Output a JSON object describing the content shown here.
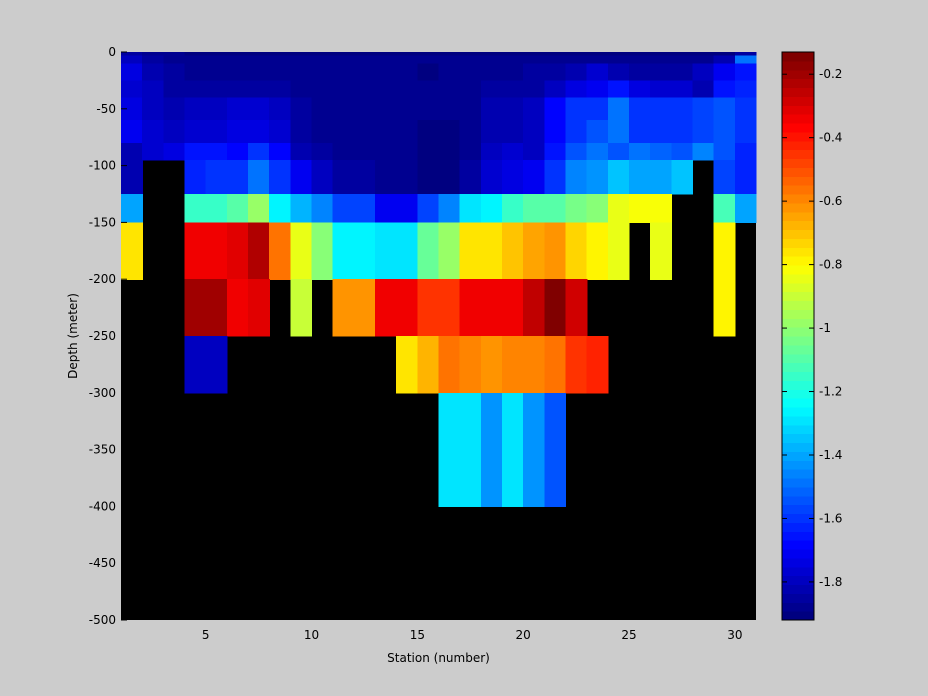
{
  "chart_data": {
    "type": "heatmap",
    "xlabel": "Station (number)",
    "ylabel": "Depth (meter)",
    "xlim": [
      1,
      31
    ],
    "ylim": [
      -500,
      0
    ],
    "x_ticks": [
      5,
      10,
      15,
      20,
      25,
      30
    ],
    "y_ticks": [
      0,
      -50,
      -100,
      -150,
      -200,
      -250,
      -300,
      -350,
      -400,
      -450,
      -500
    ],
    "colorbar": {
      "range": [
        -1.92,
        -0.13
      ],
      "ticks": [
        -0.2,
        -0.4,
        -0.6,
        -0.8,
        -1,
        -1.2,
        -1.4,
        -1.6,
        -1.8
      ],
      "colormap": "jet",
      "levels": 64
    },
    "missing_color": "#000000",
    "background_color": "#cccccc",
    "stations": [
      1,
      2,
      3,
      4,
      5,
      6,
      7,
      8,
      9,
      10,
      11,
      12,
      13,
      14,
      15,
      16,
      17,
      18,
      19,
      20,
      21,
      22,
      23,
      24,
      25,
      26,
      27,
      28,
      29,
      30
    ],
    "depth_rows": [
      {
        "depth": -3,
        "values": [
          -1.85,
          -1.88,
          -1.89,
          -1.9,
          -1.9,
          -1.9,
          -1.9,
          -1.9,
          -1.9,
          -1.9,
          -1.9,
          -1.9,
          -1.9,
          -1.9,
          -1.9,
          -1.9,
          -1.9,
          -1.9,
          -1.9,
          -1.9,
          -1.9,
          -1.9,
          -1.9,
          -1.9,
          -1.9,
          -1.9,
          -1.9,
          -1.9,
          -1.9,
          -1.85
        ]
      },
      {
        "depth": -10,
        "values": [
          -1.8,
          -1.84,
          -1.88,
          -1.89,
          -1.89,
          -1.89,
          -1.89,
          -1.89,
          -1.89,
          -1.89,
          -1.89,
          -1.89,
          -1.89,
          -1.89,
          -1.89,
          -1.89,
          -1.89,
          -1.89,
          -1.89,
          -1.89,
          -1.89,
          -1.89,
          -1.89,
          -1.89,
          -1.89,
          -1.89,
          -1.89,
          -1.89,
          -1.82,
          -1.5
        ]
      },
      {
        "depth": -25,
        "values": [
          -1.75,
          -1.82,
          -1.86,
          -1.88,
          -1.88,
          -1.88,
          -1.88,
          -1.88,
          -1.88,
          -1.88,
          -1.88,
          -1.88,
          -1.88,
          -1.88,
          -1.9,
          -1.88,
          -1.88,
          -1.88,
          -1.88,
          -1.86,
          -1.85,
          -1.82,
          -1.78,
          -1.82,
          -1.85,
          -1.86,
          -1.86,
          -1.8,
          -1.7,
          -1.65
        ]
      },
      {
        "depth": -40,
        "values": [
          -1.78,
          -1.8,
          -1.84,
          -1.86,
          -1.86,
          -1.84,
          -1.86,
          -1.86,
          -1.88,
          -1.88,
          -1.88,
          -1.88,
          -1.88,
          -1.88,
          -1.88,
          -1.88,
          -1.88,
          -1.86,
          -1.86,
          -1.85,
          -1.8,
          -1.75,
          -1.72,
          -1.65,
          -1.75,
          -1.78,
          -1.78,
          -1.82,
          -1.65,
          -1.62
        ]
      },
      {
        "depth": -60,
        "values": [
          -1.75,
          -1.8,
          -1.82,
          -1.8,
          -1.8,
          -1.78,
          -1.78,
          -1.8,
          -1.86,
          -1.88,
          -1.88,
          -1.88,
          -1.88,
          -1.88,
          -1.88,
          -1.88,
          -1.88,
          -1.82,
          -1.82,
          -1.8,
          -1.68,
          -1.6,
          -1.6,
          -1.5,
          -1.6,
          -1.6,
          -1.6,
          -1.58,
          -1.55,
          -1.6
        ]
      },
      {
        "depth": -80,
        "values": [
          -1.72,
          -1.78,
          -1.8,
          -1.78,
          -1.78,
          -1.75,
          -1.75,
          -1.78,
          -1.86,
          -1.88,
          -1.88,
          -1.88,
          -1.88,
          -1.88,
          -1.9,
          -1.9,
          -1.88,
          -1.82,
          -1.82,
          -1.8,
          -1.68,
          -1.6,
          -1.55,
          -1.5,
          -1.6,
          -1.6,
          -1.6,
          -1.58,
          -1.55,
          -1.6
        ]
      },
      {
        "depth": -95,
        "values": [
          -1.82,
          -1.76,
          -1.75,
          -1.65,
          -1.65,
          -1.68,
          -1.6,
          -1.68,
          -1.82,
          -1.85,
          -1.88,
          -1.88,
          -1.88,
          -1.88,
          -1.9,
          -1.9,
          -1.88,
          -1.8,
          -1.78,
          -1.8,
          -1.65,
          -1.55,
          -1.5,
          -1.55,
          -1.5,
          -1.52,
          -1.55,
          -1.45,
          -1.55,
          -1.62
        ]
      },
      {
        "depth": -110,
        "values": [
          -1.82,
          null,
          null,
          -1.62,
          -1.6,
          -1.6,
          -1.5,
          -1.6,
          -1.72,
          -1.8,
          -1.84,
          -1.84,
          -1.88,
          -1.88,
          -1.92,
          -1.92,
          -1.85,
          -1.78,
          -1.75,
          -1.72,
          -1.6,
          -1.45,
          -1.42,
          -1.35,
          -1.4,
          -1.4,
          -1.35,
          null,
          -1.58,
          -1.62
        ]
      },
      {
        "depth": -125,
        "values": [
          -1.82,
          null,
          null,
          -1.62,
          -1.6,
          -1.6,
          -1.5,
          -1.6,
          -1.72,
          -1.8,
          -1.84,
          -1.84,
          -1.88,
          -1.88,
          -1.92,
          -1.92,
          -1.85,
          -1.78,
          -1.75,
          -1.72,
          -1.6,
          -1.45,
          -1.42,
          -1.35,
          -1.4,
          -1.4,
          -1.35,
          null,
          -1.58,
          -1.62
        ]
      },
      {
        "depth": -150,
        "values": [
          -1.4,
          null,
          null,
          -1.15,
          -1.15,
          -1.1,
          -0.98,
          -1.25,
          -1.38,
          -1.45,
          -1.58,
          -1.58,
          -1.7,
          -1.7,
          -1.58,
          -1.45,
          -1.3,
          -1.25,
          -1.15,
          -1.1,
          -1.1,
          -1.05,
          -1.02,
          -0.85,
          -0.82,
          -0.82,
          null,
          null,
          -1.12,
          -1.4
        ]
      },
      {
        "depth": -175,
        "values": [
          -0.75,
          null,
          null,
          -0.35,
          -0.35,
          -0.3,
          -0.22,
          -0.55,
          -0.85,
          -1.0,
          -1.25,
          -1.25,
          -1.3,
          -1.3,
          -1.08,
          -0.98,
          -0.75,
          -0.75,
          -0.7,
          -0.65,
          -0.62,
          -0.72,
          -0.78,
          -0.85,
          null,
          -0.85,
          null,
          null,
          -0.8,
          null
        ]
      },
      {
        "depth": -200,
        "values": [
          -0.75,
          null,
          null,
          -0.35,
          -0.35,
          -0.3,
          -0.22,
          -0.55,
          -0.85,
          -1.0,
          -1.25,
          -1.25,
          -1.3,
          -1.3,
          -1.08,
          -0.98,
          -0.75,
          -0.75,
          -0.7,
          -0.65,
          -0.62,
          -0.72,
          -0.78,
          -0.85,
          null,
          -0.85,
          null,
          null,
          -0.8,
          null
        ]
      },
      {
        "depth": -225,
        "values": [
          null,
          null,
          null,
          -0.2,
          -0.2,
          -0.35,
          -0.32,
          null,
          -0.9,
          null,
          -0.62,
          -0.62,
          -0.35,
          -0.35,
          -0.45,
          -0.45,
          -0.35,
          -0.35,
          -0.35,
          -0.25,
          -0.12,
          -0.28,
          null,
          null,
          null,
          null,
          null,
          null,
          -0.8,
          null
        ]
      },
      {
        "depth": -250,
        "values": [
          null,
          null,
          null,
          -0.2,
          -0.2,
          -0.35,
          -0.32,
          null,
          -0.9,
          null,
          -0.62,
          -0.62,
          -0.35,
          -0.35,
          -0.45,
          -0.45,
          -0.35,
          -0.35,
          -0.35,
          -0.25,
          -0.12,
          -0.28,
          null,
          null,
          null,
          null,
          null,
          null,
          -0.8,
          null
        ]
      },
      {
        "depth": -275,
        "values": [
          null,
          null,
          null,
          -1.8,
          -1.8,
          null,
          null,
          null,
          null,
          null,
          null,
          null,
          null,
          -0.75,
          -0.68,
          -0.55,
          -0.58,
          -0.62,
          -0.58,
          -0.58,
          -0.55,
          -0.45,
          -0.42,
          null,
          null,
          null,
          null,
          null,
          null,
          null
        ]
      },
      {
        "depth": -300,
        "values": [
          null,
          null,
          null,
          -1.8,
          -1.8,
          null,
          null,
          null,
          null,
          null,
          null,
          null,
          null,
          -0.75,
          -0.68,
          -0.55,
          -0.58,
          -0.62,
          -0.58,
          -0.58,
          -0.55,
          -0.45,
          -0.42,
          null,
          null,
          null,
          null,
          null,
          null,
          null
        ]
      },
      {
        "depth": -325,
        "values": [
          null,
          null,
          null,
          null,
          null,
          null,
          null,
          null,
          null,
          null,
          null,
          null,
          null,
          null,
          null,
          -1.28,
          -1.3,
          -1.42,
          -1.3,
          -1.42,
          -1.55,
          null,
          null,
          null,
          null,
          null,
          null,
          null,
          null,
          null
        ]
      },
      {
        "depth": -350,
        "values": [
          null,
          null,
          null,
          null,
          null,
          null,
          null,
          null,
          null,
          null,
          null,
          null,
          null,
          null,
          null,
          -1.28,
          -1.3,
          -1.42,
          -1.3,
          -1.42,
          -1.55,
          null,
          null,
          null,
          null,
          null,
          null,
          null,
          null,
          null
        ]
      },
      {
        "depth": -375,
        "values": [
          null,
          null,
          null,
          null,
          null,
          null,
          null,
          null,
          null,
          null,
          null,
          null,
          null,
          null,
          null,
          -1.28,
          -1.3,
          -1.42,
          -1.3,
          -1.42,
          -1.55,
          null,
          null,
          null,
          null,
          null,
          null,
          null,
          null,
          null
        ]
      },
      {
        "depth": -400,
        "values": [
          null,
          null,
          null,
          null,
          null,
          null,
          null,
          null,
          null,
          null,
          null,
          null,
          null,
          null,
          null,
          -1.28,
          -1.3,
          -1.42,
          -1.3,
          -1.42,
          -1.55,
          null,
          null,
          null,
          null,
          null,
          null,
          null,
          null,
          null
        ]
      }
    ],
    "grid": false,
    "legend": "none"
  }
}
